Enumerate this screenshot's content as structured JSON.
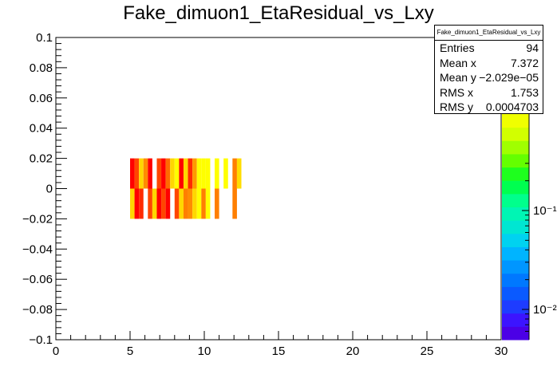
{
  "chart_data": {
    "type": "heatmap",
    "title": "Fake_dimuon1_EtaResidual_vs_Lxy",
    "xlim": [
      0,
      30
    ],
    "ylim": [
      -0.1,
      0.1
    ],
    "x_ticks": [
      "0",
      "5",
      "10",
      "15",
      "20",
      "25",
      "30"
    ],
    "y_ticks": [
      "0.1",
      "0.08",
      "0.06",
      "0.04",
      "0.02",
      "0",
      "−0.02",
      "−0.04",
      "−0.06",
      "−0.08",
      "−0.1"
    ],
    "z_scale": "log",
    "z_ticks": [
      "10⁻¹",
      "10⁻²"
    ],
    "colorbar_palette": [
      "#4b00e6",
      "#3c14ff",
      "#1e3cff",
      "#0a5aff",
      "#0078ff",
      "#0096ff",
      "#00b4ff",
      "#00d2f0",
      "#00e6d2",
      "#00f5b4",
      "#00ff8c",
      "#00ff50",
      "#1eff1e",
      "#64ff00",
      "#a0ff00",
      "#d2ff00",
      "#f0ff00"
    ],
    "cells": [
      {
        "x": 5.15,
        "y": 0.01,
        "color": "#ff0000"
      },
      {
        "x": 5.45,
        "y": 0.01,
        "color": "#ff4500"
      },
      {
        "x": 5.75,
        "y": 0.01,
        "color": "#ffd700"
      },
      {
        "x": 6.05,
        "y": 0.01,
        "color": "#ff8c00"
      },
      {
        "x": 6.35,
        "y": 0.01,
        "color": "#ff0000"
      },
      {
        "x": 6.95,
        "y": 0.01,
        "color": "#ff4500"
      },
      {
        "x": 7.25,
        "y": 0.01,
        "color": "#ff0000"
      },
      {
        "x": 7.55,
        "y": 0.01,
        "color": "#ff6a00"
      },
      {
        "x": 7.85,
        "y": 0.01,
        "color": "#ffd700"
      },
      {
        "x": 8.15,
        "y": 0.01,
        "color": "#ffff00"
      },
      {
        "x": 8.45,
        "y": 0.01,
        "color": "#ff0000"
      },
      {
        "x": 8.75,
        "y": 0.01,
        "color": "#ffd700"
      },
      {
        "x": 9.05,
        "y": 0.01,
        "color": "#ff2a00"
      },
      {
        "x": 9.35,
        "y": 0.01,
        "color": "#ff9900"
      },
      {
        "x": 9.65,
        "y": 0.01,
        "color": "#ffff00"
      },
      {
        "x": 9.95,
        "y": 0.01,
        "color": "#ffff00"
      },
      {
        "x": 10.25,
        "y": 0.01,
        "color": "#ffff00"
      },
      {
        "x": 10.85,
        "y": 0.01,
        "color": "#ffff00"
      },
      {
        "x": 11.45,
        "y": 0.01,
        "color": "#ffff00"
      },
      {
        "x": 12.05,
        "y": 0.01,
        "color": "#ff7f00"
      },
      {
        "x": 12.35,
        "y": 0.01,
        "color": "#ffdd00"
      },
      {
        "x": 5.15,
        "y": -0.01,
        "color": "#ffd700"
      },
      {
        "x": 5.45,
        "y": -0.01,
        "color": "#ff0000"
      },
      {
        "x": 5.75,
        "y": -0.01,
        "color": "#ff2a00"
      },
      {
        "x": 6.35,
        "y": -0.01,
        "color": "#ff4500"
      },
      {
        "x": 6.65,
        "y": -0.01,
        "color": "#ffd700"
      },
      {
        "x": 6.95,
        "y": -0.01,
        "color": "#ff0000"
      },
      {
        "x": 7.25,
        "y": -0.01,
        "color": "#ff4500"
      },
      {
        "x": 7.55,
        "y": -0.01,
        "color": "#ff0000"
      },
      {
        "x": 8.15,
        "y": -0.01,
        "color": "#ff4500"
      },
      {
        "x": 8.45,
        "y": -0.01,
        "color": "#ffd700"
      },
      {
        "x": 8.75,
        "y": -0.01,
        "color": "#ff7f00"
      },
      {
        "x": 9.05,
        "y": -0.01,
        "color": "#ff8c00"
      },
      {
        "x": 9.35,
        "y": -0.01,
        "color": "#ffd700"
      },
      {
        "x": 9.65,
        "y": -0.01,
        "color": "#ffff00"
      },
      {
        "x": 9.95,
        "y": -0.01,
        "color": "#ff7f00"
      },
      {
        "x": 10.25,
        "y": -0.01,
        "color": "#ffff00"
      },
      {
        "x": 10.85,
        "y": -0.01,
        "color": "#ff7f00"
      },
      {
        "x": 12.05,
        "y": -0.01,
        "color": "#ff7f00"
      }
    ]
  },
  "stats": {
    "title": "Fake_dimuon1_EtaResidual_vs_Lxy",
    "rows": [
      {
        "label": "Entries",
        "value": "94"
      },
      {
        "label": "Mean x",
        "value": "7.372"
      },
      {
        "label": "Mean y",
        "value": "−2.029e−05"
      },
      {
        "label": "RMS x",
        "value": "1.753"
      },
      {
        "label": "RMS y",
        "value": "0.0004703"
      }
    ]
  }
}
